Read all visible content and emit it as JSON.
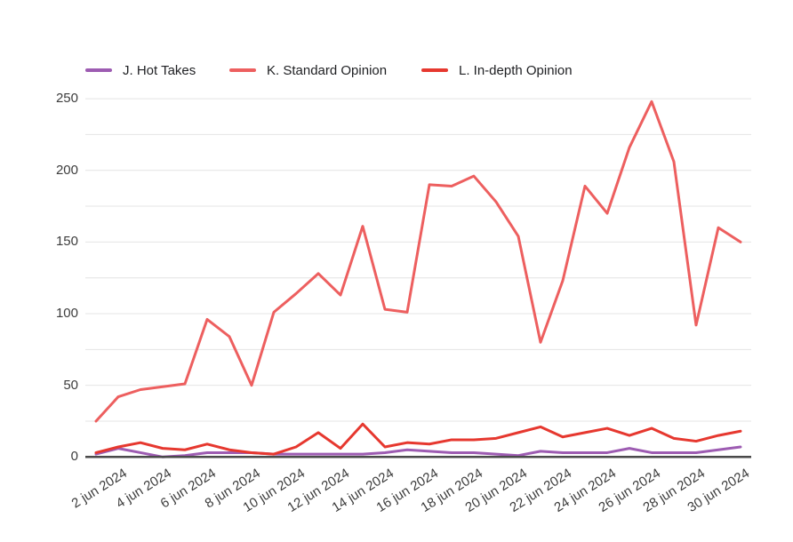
{
  "chart_data": {
    "type": "line",
    "title": "",
    "xlabel": "",
    "ylabel": "",
    "grid": true,
    "legend_position": "top",
    "ylim": [
      0,
      250
    ],
    "y_gridline_step": 25,
    "y_ticks": [
      0,
      50,
      100,
      150,
      200,
      250
    ],
    "x_days_jun_2024": [
      1,
      2,
      3,
      4,
      5,
      6,
      7,
      8,
      9,
      10,
      11,
      12,
      13,
      14,
      15,
      16,
      17,
      18,
      19,
      20,
      21,
      22,
      23,
      24,
      25,
      26,
      27,
      28,
      29,
      30
    ],
    "x_tick_labels": [
      "2 jun 2024",
      "4 jun 2024",
      "6 jun 2024",
      "8 jun 2024",
      "10 jun 2024",
      "12 jun 2024",
      "14 jun 2024",
      "16 jun 2024",
      "18 jun 2024",
      "20 jun 2024",
      "22 jun 2024",
      "24 jun 2024",
      "26 jun 2024",
      "28 jun 2024",
      "30 jun 2024"
    ],
    "x_tick_every_n_points": 2,
    "series": [
      {
        "name": "J. Hot Takes",
        "color": "#9d5cb2",
        "values": [
          2,
          6,
          3,
          0,
          1,
          3,
          3,
          3,
          2,
          2,
          2,
          2,
          2,
          3,
          5,
          4,
          3,
          3,
          2,
          1,
          4,
          3,
          3,
          3,
          6,
          3,
          3,
          3,
          5,
          7
        ]
      },
      {
        "name": "K. Standard Opinion",
        "color": "#ed5f5f",
        "values": [
          25,
          42,
          47,
          49,
          51,
          96,
          84,
          50,
          101,
          114,
          128,
          113,
          161,
          103,
          101,
          190,
          189,
          196,
          178,
          154,
          80,
          123,
          189,
          170,
          216,
          248,
          206,
          92,
          160,
          150
        ]
      },
      {
        "name": "L. In-depth Opinion",
        "color": "#e6382f",
        "values": [
          3,
          7,
          10,
          6,
          5,
          9,
          5,
          3,
          2,
          7,
          17,
          6,
          23,
          7,
          10,
          9,
          12,
          12,
          13,
          17,
          21,
          14,
          17,
          20,
          15,
          20,
          13,
          11,
          15,
          18
        ]
      }
    ],
    "colors": {
      "gridline": "#e4e4e4",
      "baseline": "#4a4a4a",
      "axis_text": "#3c3c3c",
      "legend_text": "#202124",
      "background": "#ffffff"
    }
  }
}
